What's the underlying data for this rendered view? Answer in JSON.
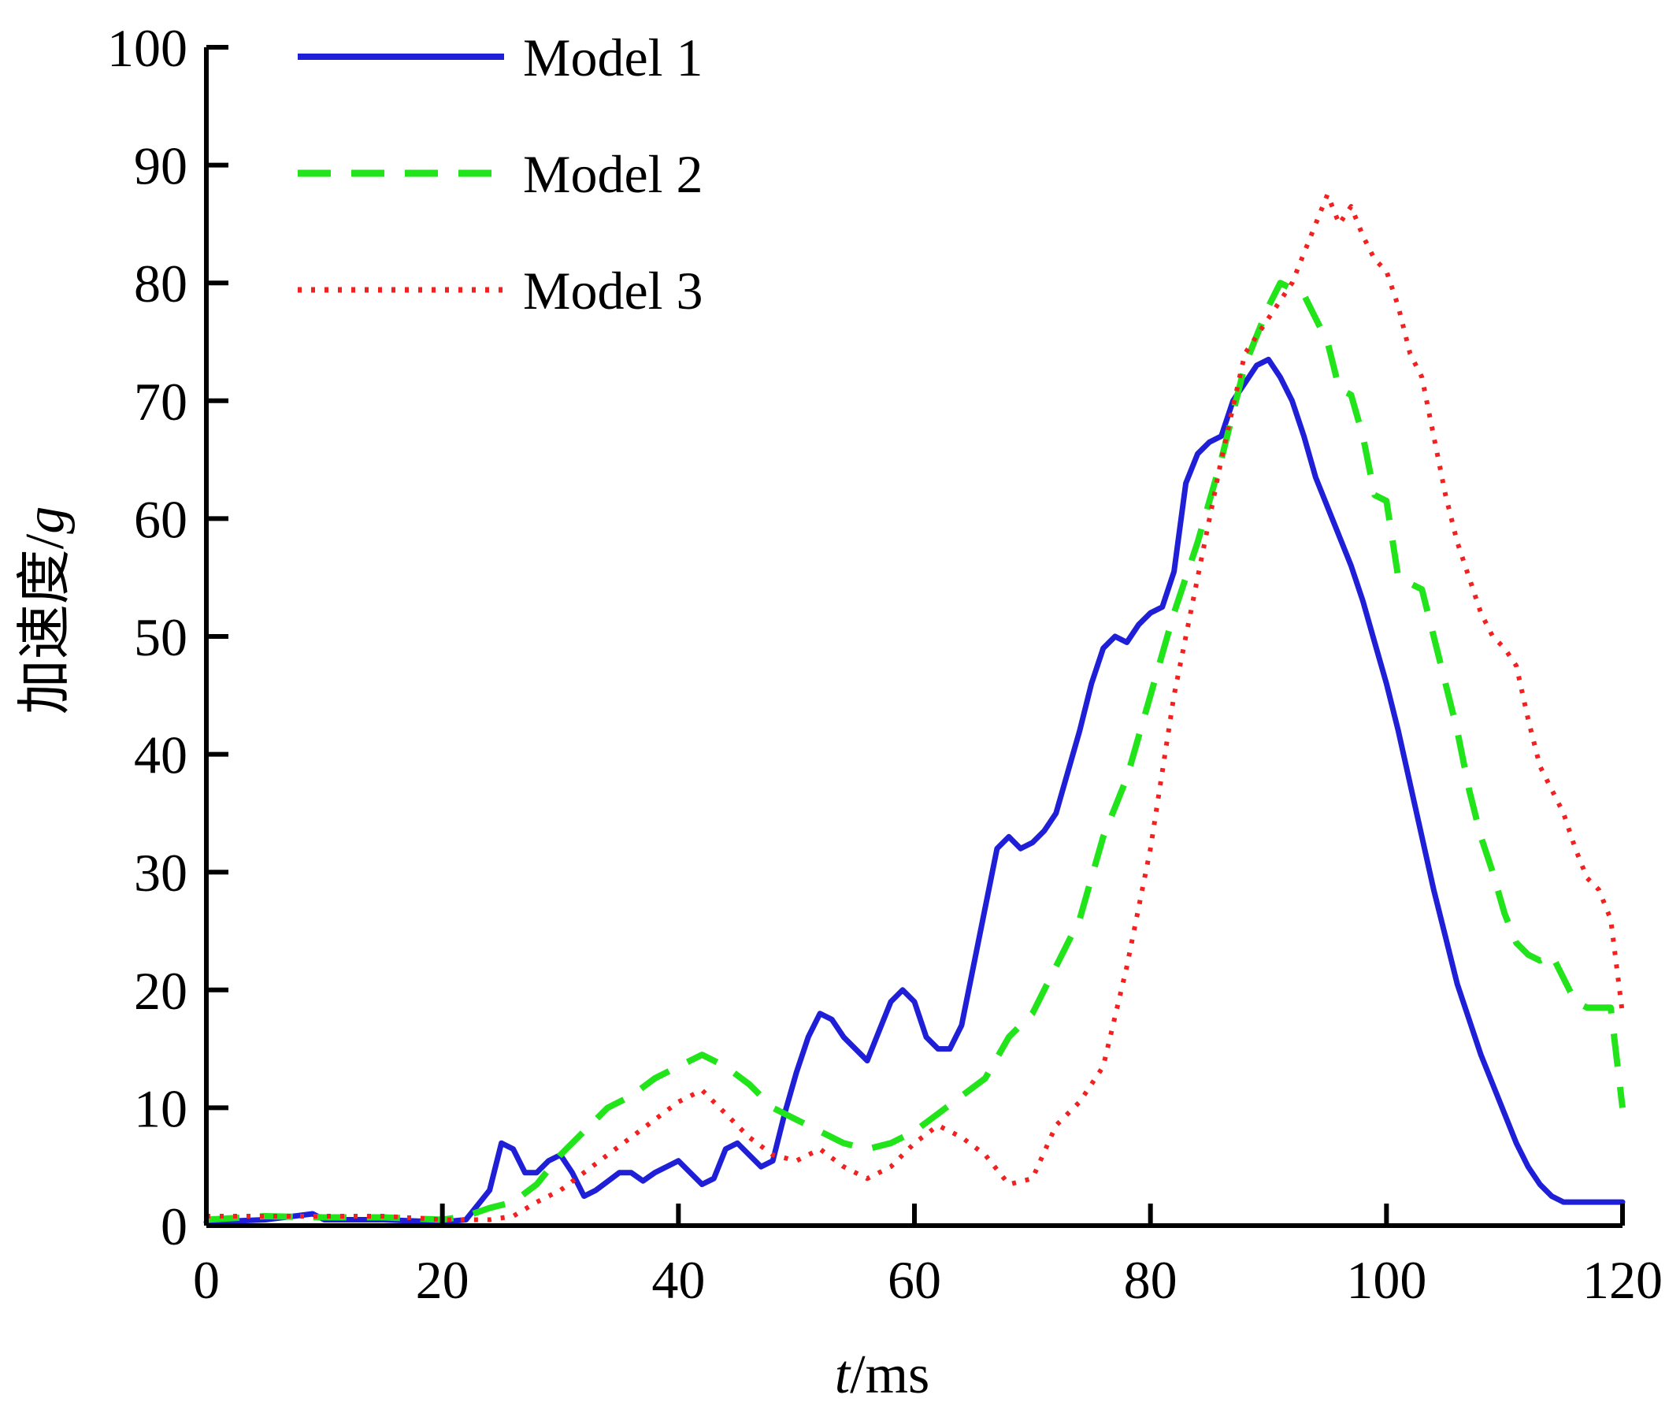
{
  "chart_data": {
    "type": "line",
    "title": "",
    "xlabel_italic": "t",
    "xlabel_unit": "/ms",
    "ylabel_text": "加速度/",
    "ylabel_italic": "g",
    "xlim": [
      0,
      120
    ],
    "ylim": [
      0,
      100
    ],
    "xticks": [
      0,
      20,
      40,
      60,
      80,
      100,
      120
    ],
    "yticks": [
      0,
      10,
      20,
      30,
      40,
      50,
      60,
      70,
      80,
      90,
      100
    ],
    "legend_position": "top-left",
    "grid": false,
    "series": [
      {
        "name": "Model 1",
        "color": "#1f1fd8",
        "style": "solid",
        "x": [
          0,
          5,
          9,
          10,
          15,
          20,
          22,
          24,
          25,
          26,
          27,
          28,
          29,
          30,
          31,
          32,
          33,
          35,
          36,
          37,
          38,
          40,
          41,
          42,
          43,
          44,
          45,
          46,
          47,
          48,
          49,
          50,
          51,
          52,
          53,
          54,
          55,
          56,
          57,
          58,
          59,
          60,
          61,
          62,
          63,
          64,
          65,
          66,
          67,
          68,
          69,
          70,
          71,
          72,
          73,
          74,
          75,
          76,
          77,
          78,
          79,
          80,
          81,
          82,
          83,
          84,
          85,
          86,
          87,
          88,
          89,
          90,
          91,
          92,
          93,
          94,
          95,
          96,
          97,
          98,
          99,
          100,
          101,
          102,
          103,
          104,
          105,
          106,
          107,
          108,
          109,
          110,
          111,
          112,
          113,
          114,
          115,
          116,
          117,
          118,
          119,
          120
        ],
        "values": [
          0.3,
          0.5,
          1.0,
          0.5,
          0.5,
          0.3,
          0.5,
          3.0,
          7.0,
          6.5,
          4.5,
          4.5,
          5.5,
          6.0,
          4.5,
          2.5,
          3.0,
          4.5,
          4.5,
          3.8,
          4.5,
          5.5,
          4.5,
          3.5,
          4.0,
          6.5,
          7.0,
          6.0,
          5.0,
          5.5,
          9.5,
          13.0,
          16.0,
          18.0,
          17.5,
          16.0,
          15.0,
          14.0,
          16.5,
          19.0,
          20.0,
          19.0,
          16.0,
          15.0,
          15.0,
          17.0,
          22.0,
          27.0,
          32.0,
          33.0,
          32.0,
          32.5,
          33.5,
          35.0,
          38.5,
          42.0,
          46.0,
          49.0,
          50.0,
          49.5,
          51.0,
          52.0,
          52.5,
          55.5,
          63.0,
          65.5,
          66.5,
          67.0,
          70.0,
          71.5,
          73.0,
          73.5,
          72.0,
          70.0,
          67.0,
          63.5,
          61.0,
          58.5,
          56.0,
          53.0,
          49.5,
          46.0,
          42.0,
          37.5,
          33.0,
          28.5,
          24.5,
          20.5,
          17.5,
          14.5,
          12.0,
          9.5,
          7.0,
          5.0,
          3.5,
          2.5,
          2.0,
          2.0,
          2.0,
          2.0,
          2.0,
          2.0
        ]
      },
      {
        "name": "Model 2",
        "color": "#22e41a",
        "style": "dashed",
        "x": [
          0,
          5,
          10,
          15,
          20,
          22,
          24,
          26,
          28,
          30,
          32,
          34,
          36,
          38,
          40,
          42,
          44,
          46,
          48,
          50,
          52,
          54,
          56,
          58,
          60,
          62,
          64,
          66,
          68,
          70,
          72,
          74,
          76,
          78,
          80,
          82,
          84,
          86,
          88,
          90,
          91,
          92,
          93,
          94,
          95,
          96,
          97,
          98,
          99,
          100,
          101,
          102,
          103,
          104,
          105,
          106,
          107,
          108,
          109,
          110,
          111,
          112,
          113,
          114,
          115,
          116,
          117,
          118,
          119,
          120
        ],
        "values": [
          0.5,
          0.8,
          0.7,
          0.7,
          0.5,
          0.8,
          1.5,
          2.0,
          3.5,
          6.0,
          8.0,
          10.0,
          11.0,
          12.5,
          13.5,
          14.5,
          13.5,
          12.0,
          10.0,
          9.0,
          8.0,
          7.0,
          6.5,
          7.0,
          8.0,
          9.5,
          11.0,
          12.5,
          16.0,
          18.0,
          22.0,
          26.0,
          33.0,
          38.0,
          45.0,
          52.0,
          58.0,
          65.0,
          73.0,
          78.0,
          80.0,
          79.5,
          79.0,
          77.0,
          75.0,
          71.0,
          70.5,
          67.0,
          62.0,
          61.5,
          55.0,
          54.5,
          54.0,
          50.0,
          46.0,
          42.0,
          37.0,
          33.0,
          30.0,
          26.5,
          24.0,
          23.0,
          22.5,
          23.0,
          21.0,
          19.0,
          18.5,
          18.5,
          18.5,
          10.0
        ]
      },
      {
        "name": "Model 3",
        "color": "#f32020",
        "style": "dotted",
        "x": [
          0,
          5,
          10,
          15,
          20,
          22,
          24,
          26,
          28,
          30,
          32,
          34,
          36,
          38,
          40,
          42,
          44,
          46,
          48,
          50,
          52,
          54,
          56,
          58,
          60,
          62,
          64,
          66,
          68,
          70,
          72,
          74,
          76,
          78,
          80,
          82,
          84,
          86,
          88,
          90,
          92,
          94,
          95,
          96,
          97,
          98,
          99,
          100,
          101,
          102,
          103,
          104,
          105,
          106,
          107,
          108,
          109,
          110,
          111,
          112,
          113,
          114,
          115,
          116,
          117,
          118,
          119,
          120
        ],
        "values": [
          0.8,
          0.8,
          0.8,
          0.8,
          0.5,
          0.5,
          0.5,
          0.8,
          2.0,
          3.0,
          4.5,
          6.0,
          7.5,
          9.0,
          10.5,
          11.5,
          9.5,
          7.5,
          6.0,
          5.5,
          6.5,
          5.0,
          4.0,
          5.0,
          7.0,
          8.5,
          7.5,
          6.0,
          3.5,
          4.0,
          8.5,
          10.5,
          13.5,
          22.0,
          32.0,
          45.0,
          55.0,
          65.0,
          74.0,
          77.0,
          80.0,
          85.0,
          87.5,
          85.0,
          86.5,
          84.0,
          82.0,
          81.0,
          78.0,
          74.0,
          72.0,
          67.0,
          62.0,
          58.0,
          55.0,
          52.0,
          50.0,
          49.0,
          47.5,
          43.0,
          39.0,
          37.0,
          35.0,
          32.0,
          29.5,
          28.5,
          26.0,
          18.0
        ]
      }
    ]
  }
}
